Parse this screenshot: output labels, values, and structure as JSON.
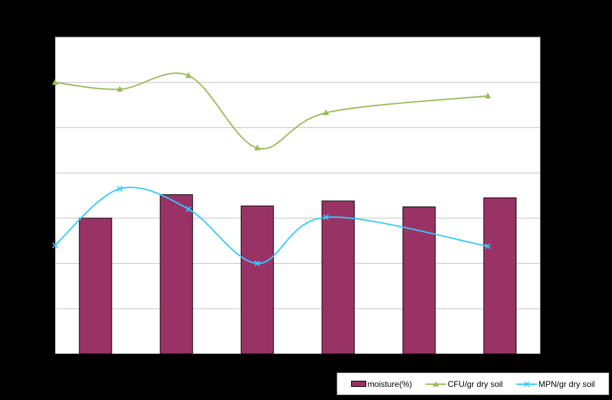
{
  "chart_data": {
    "type": "bar",
    "categories": [
      "",
      "",
      "",
      "",
      "",
      ""
    ],
    "ylim": [
      0,
      7
    ],
    "grid": true,
    "legend_position": "bottom-right",
    "series": [
      {
        "name": "moisture(%)",
        "type": "bar",
        "color": "#993366",
        "values": [
          3.0,
          3.52,
          3.27,
          3.38,
          3.25,
          3.45
        ]
      },
      {
        "name": "CFU/gr dry soil",
        "type": "line",
        "marker": "triangle",
        "color": "#9bbb59",
        "x": [
          0.0,
          0.8,
          1.65,
          2.5,
          3.35,
          5.35
        ],
        "values": [
          6.0,
          5.85,
          6.15,
          4.55,
          5.33,
          5.7
        ]
      },
      {
        "name": "MPN/gr dry soil",
        "type": "line",
        "marker": "x",
        "color": "#33ccff",
        "x": [
          0.0,
          0.8,
          1.65,
          2.5,
          3.35,
          5.35
        ],
        "values": [
          2.4,
          3.65,
          3.2,
          2.0,
          3.02,
          2.38
        ]
      }
    ]
  }
}
